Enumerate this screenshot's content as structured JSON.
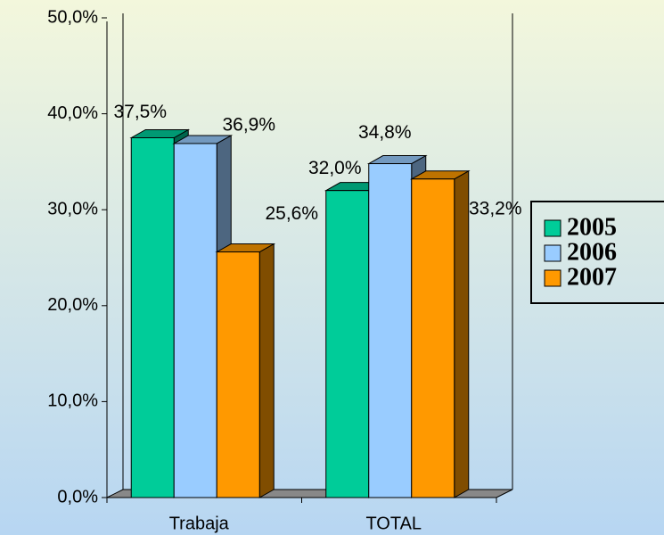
{
  "chart_data": {
    "type": "bar3d",
    "categories": [
      "Trabaja",
      "TOTAL"
    ],
    "series": [
      {
        "name": "2005",
        "color": "#00cc99",
        "values": [
          37.5,
          32.0
        ],
        "value_labels": [
          "37,5%",
          "32,0%"
        ]
      },
      {
        "name": "2006",
        "color": "#99ccff",
        "values": [
          36.9,
          34.8
        ],
        "value_labels": [
          "36,9%",
          "34,8%"
        ]
      },
      {
        "name": "2007",
        "color": "#ff9900",
        "values": [
          25.6,
          33.2
        ],
        "value_labels": [
          "25,6%",
          "33,2%"
        ]
      }
    ],
    "ylim": [
      0,
      50
    ],
    "yticks": [
      {
        "value": 0,
        "label": "0,0%"
      },
      {
        "value": 10,
        "label": "10,0%"
      },
      {
        "value": 20,
        "label": "20,0%"
      },
      {
        "value": 30,
        "label": "30,0%"
      },
      {
        "value": 40,
        "label": "40,0%"
      },
      {
        "value": 50,
        "label": "50,0%"
      }
    ],
    "legend": "right"
  }
}
